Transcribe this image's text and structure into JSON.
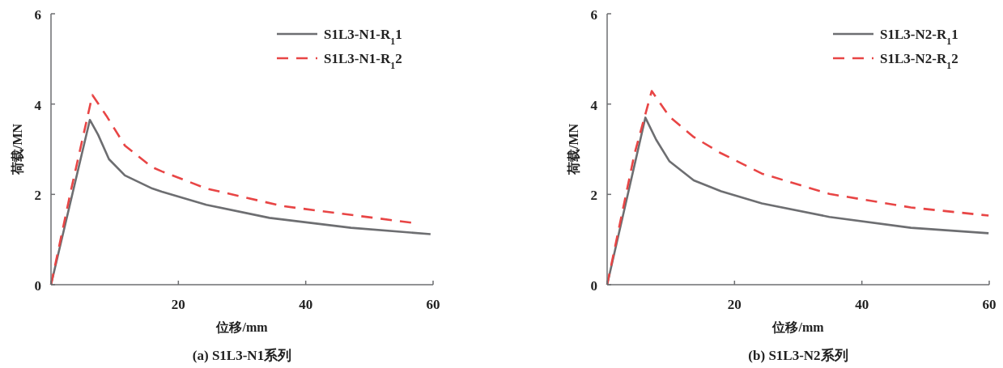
{
  "chart_data": [
    {
      "type": "line",
      "title": "(a) S1L3-N1系列",
      "xlabel": "位移/mm",
      "ylabel": "荷载/MN",
      "xlim": [
        0,
        60
      ],
      "ylim": [
        0,
        6
      ],
      "xticks": [
        {
          "value": 0,
          "label": null
        },
        20,
        40,
        60
      ],
      "yticks": [
        0,
        2,
        4,
        6
      ],
      "grid": false,
      "legend": "top right",
      "series": [
        {
          "name": "S1L3-N1-R$_{1}$1",
          "color": "#6d6e71",
          "line_style": "solid",
          "x": [
            0,
            6.1,
            7.4,
            9.1,
            11.6,
            15.9,
            17.4,
            24.4,
            34.3,
            47.1,
            59.6
          ],
          "values": [
            0,
            3.65,
            3.32,
            2.78,
            2.42,
            2.13,
            2.06,
            1.77,
            1.48,
            1.26,
            1.12
          ]
        },
        {
          "name": "S1L3-N1-R$_{1}$2",
          "color": "#e84545",
          "line_style": "dashed",
          "x": [
            0,
            3.2,
            6.5,
            8.7,
            11.6,
            15.9,
            17.4,
            24.4,
            36.4,
            56.8
          ],
          "values": [
            0,
            2.13,
            4.2,
            3.74,
            3.08,
            2.6,
            2.51,
            2.13,
            1.74,
            1.37
          ]
        }
      ]
    },
    {
      "type": "line",
      "title": "(b) S1L3-N2系列",
      "xlabel": "位移/mm",
      "ylabel": "荷载/MN",
      "xlim": [
        0,
        60
      ],
      "ylim": [
        0,
        6
      ],
      "xticks": [
        {
          "value": 0,
          "label": null
        },
        20,
        40,
        60
      ],
      "yticks": [
        0,
        2,
        4,
        6
      ],
      "grid": false,
      "legend": "top right",
      "series": [
        {
          "name": "S1L3-N2-R$_{1}$1",
          "color": "#6d6e71",
          "line_style": "solid",
          "x": [
            0,
            6.0,
            7.7,
            9.8,
            13.6,
            17.9,
            24.3,
            34.9,
            47.7,
            59.9
          ],
          "values": [
            0,
            3.7,
            3.21,
            2.73,
            2.31,
            2.07,
            1.8,
            1.5,
            1.26,
            1.14
          ]
        },
        {
          "name": "S1L3-N2-R$_{1}$2",
          "color": "#e84545",
          "line_style": "dashed",
          "x": [
            0,
            4.3,
            7.0,
            9.8,
            13.6,
            17.9,
            24.3,
            34.9,
            47.7,
            59.9
          ],
          "values": [
            0,
            2.9,
            4.29,
            3.72,
            3.27,
            2.91,
            2.46,
            2.01,
            1.71,
            1.53
          ]
        }
      ]
    }
  ]
}
